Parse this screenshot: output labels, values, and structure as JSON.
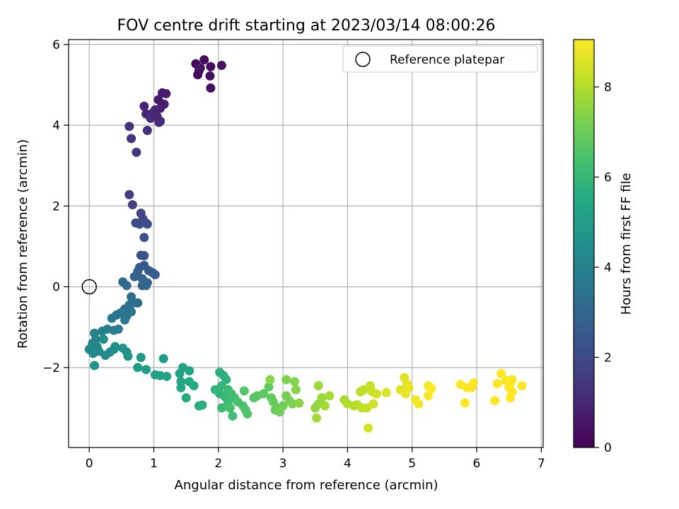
{
  "chart_data": {
    "type": "scatter",
    "title": "FOV centre drift starting at 2023/03/14 08:00:26",
    "xlabel": "Angular distance from reference (arcmin)",
    "ylabel": "Rotation from reference (arcmin)",
    "xlim": [
      -0.32,
      7.03
    ],
    "ylim": [
      -3.98,
      6.12
    ],
    "xticks": [
      0,
      1,
      2,
      3,
      4,
      5,
      6,
      7
    ],
    "yticks": [
      -2,
      0,
      2,
      4,
      6
    ],
    "x_tick_labels": [
      "0",
      "1",
      "2",
      "3",
      "4",
      "5",
      "6",
      "7"
    ],
    "y_tick_labels": [
      "−2",
      "0",
      "2",
      "4",
      "6"
    ],
    "grid": true,
    "legend": {
      "position": "top-right",
      "entries": [
        {
          "label": "Reference platepar",
          "marker": "open-circle"
        }
      ]
    },
    "reference_point": {
      "x": 0,
      "y": 0
    },
    "colorbar": {
      "label": "Hours from first FF file",
      "min": 0,
      "max": 9.05,
      "ticks": [
        0,
        2,
        4,
        6,
        8
      ],
      "tick_labels": [
        "0",
        "2",
        "4",
        "6",
        "8"
      ],
      "colormap": "viridis"
    },
    "series": [
      {
        "points": [
          [
            1.65,
            5.52,
            0.1
          ],
          [
            1.7,
            5.35,
            0.15
          ],
          [
            1.68,
            5.25,
            0.2
          ],
          [
            1.78,
            5.62,
            0.25
          ],
          [
            1.88,
            5.45,
            0.3
          ],
          [
            1.87,
            5.22,
            0.35
          ],
          [
            1.88,
            4.92,
            0.4
          ],
          [
            2.05,
            5.48,
            0.45
          ],
          [
            1.72,
            5.42,
            0.5
          ],
          [
            1.07,
            4.63,
            0.6
          ],
          [
            1.13,
            4.8,
            0.65
          ],
          [
            1.19,
            4.78,
            0.7
          ],
          [
            1.16,
            4.52,
            0.75
          ],
          [
            1.1,
            4.42,
            0.8
          ],
          [
            1.02,
            4.38,
            0.85
          ],
          [
            0.85,
            4.47,
            0.9
          ],
          [
            0.88,
            4.28,
            0.95
          ],
          [
            0.98,
            4.3,
            1.0
          ],
          [
            1.05,
            4.22,
            1.05
          ],
          [
            0.95,
            4.17,
            1.1
          ],
          [
            1.08,
            4.07,
            1.15
          ],
          [
            1.1,
            4.1,
            1.2
          ],
          [
            0.9,
            3.87,
            1.25
          ],
          [
            0.62,
            3.97,
            1.3
          ],
          [
            0.65,
            3.67,
            1.35
          ],
          [
            0.73,
            3.33,
            1.4
          ],
          [
            0.62,
            2.28,
            1.6
          ],
          [
            0.67,
            2.03,
            1.7
          ],
          [
            0.8,
            1.82,
            1.8
          ],
          [
            0.83,
            1.68,
            1.9
          ],
          [
            0.88,
            1.58,
            2.0
          ],
          [
            0.72,
            1.58,
            2.05
          ],
          [
            0.78,
            1.55,
            2.1
          ],
          [
            0.9,
            1.55,
            2.15
          ],
          [
            0.85,
            1.22,
            2.2
          ],
          [
            0.8,
            0.78,
            2.3
          ],
          [
            0.85,
            0.77,
            2.35
          ],
          [
            0.78,
            0.48,
            2.45
          ],
          [
            0.85,
            0.53,
            2.5
          ],
          [
            0.92,
            0.4,
            2.55
          ],
          [
            0.98,
            0.35,
            2.6
          ],
          [
            1.02,
            0.3,
            2.65
          ],
          [
            0.75,
            0.38,
            2.7
          ],
          [
            0.7,
            0.25,
            2.8
          ],
          [
            0.82,
            0.2,
            2.85
          ],
          [
            0.9,
            0.1,
            2.9
          ],
          [
            0.82,
            0.03,
            2.95
          ],
          [
            0.88,
            0.03,
            3.0
          ],
          [
            0.52,
            0.12,
            3.05
          ],
          [
            0.58,
            0.03,
            3.1
          ],
          [
            0.65,
            -0.25,
            3.15
          ],
          [
            0.75,
            -0.4,
            3.2
          ],
          [
            0.68,
            -0.4,
            3.25
          ],
          [
            0.62,
            -0.45,
            3.3
          ],
          [
            0.55,
            -0.55,
            3.35
          ],
          [
            0.65,
            -0.62,
            3.4
          ],
          [
            0.58,
            -0.72,
            3.45
          ],
          [
            0.48,
            -0.65,
            3.5
          ],
          [
            0.42,
            -0.7,
            3.55
          ],
          [
            0.35,
            -0.78,
            3.6
          ],
          [
            0.55,
            -0.82,
            3.65
          ],
          [
            0.45,
            -1.05,
            3.75
          ],
          [
            0.38,
            -1.08,
            3.8
          ],
          [
            0.28,
            -1.05,
            3.85
          ],
          [
            0.2,
            -1.1,
            3.9
          ],
          [
            0.08,
            -1.15,
            3.95
          ],
          [
            0.1,
            -1.3,
            4.0
          ],
          [
            0.05,
            -1.4,
            4.05
          ],
          [
            0.12,
            -1.48,
            4.1
          ],
          [
            0.0,
            -1.55,
            4.15
          ],
          [
            0.06,
            -1.65,
            4.2
          ],
          [
            0.15,
            -1.6,
            4.25
          ],
          [
            0.25,
            -1.7,
            4.3
          ],
          [
            0.32,
            -1.62,
            4.35
          ],
          [
            0.38,
            -1.55,
            4.4
          ],
          [
            0.22,
            -1.3,
            4.45
          ],
          [
            0.4,
            -1.48,
            4.5
          ],
          [
            0.52,
            -1.52,
            4.55
          ],
          [
            0.58,
            -1.62,
            4.6
          ],
          [
            0.6,
            -1.72,
            4.65
          ],
          [
            0.08,
            -1.95,
            4.7
          ],
          [
            0.8,
            -1.75,
            4.85
          ],
          [
            1.15,
            -1.78,
            4.9
          ],
          [
            0.75,
            -2.0,
            4.95
          ],
          [
            0.88,
            -2.05,
            5.0
          ],
          [
            1.02,
            -2.18,
            5.05
          ],
          [
            1.1,
            -2.2,
            5.1
          ],
          [
            1.2,
            -2.22,
            5.15
          ],
          [
            1.4,
            -2.15,
            5.2
          ],
          [
            1.45,
            -2.0,
            5.25
          ],
          [
            1.55,
            -2.08,
            5.3
          ],
          [
            1.42,
            -2.35,
            5.35
          ],
          [
            1.42,
            -2.5,
            5.4
          ],
          [
            1.55,
            -2.35,
            5.45
          ],
          [
            1.62,
            -2.45,
            5.5
          ],
          [
            1.5,
            -2.75,
            5.55
          ],
          [
            1.7,
            -2.95,
            5.6
          ],
          [
            1.75,
            -2.93,
            5.65
          ],
          [
            2.02,
            -2.12,
            5.7
          ],
          [
            2.08,
            -2.2,
            5.75
          ],
          [
            2.12,
            -2.3,
            5.8
          ],
          [
            1.95,
            -2.55,
            5.85
          ],
          [
            2.05,
            -2.45,
            5.9
          ],
          [
            2.02,
            -2.65,
            5.95
          ],
          [
            2.1,
            -2.72,
            6.0
          ],
          [
            2.15,
            -2.55,
            6.05
          ],
          [
            2.05,
            -3.0,
            6.1
          ],
          [
            2.15,
            -2.85,
            6.15
          ],
          [
            2.2,
            -2.65,
            6.2
          ],
          [
            2.25,
            -2.75,
            6.25
          ],
          [
            2.22,
            -3.2,
            6.3
          ],
          [
            2.18,
            -3.0,
            6.35
          ],
          [
            2.3,
            -2.85,
            6.4
          ],
          [
            2.38,
            -2.95,
            6.45
          ],
          [
            2.42,
            -3.05,
            6.5
          ],
          [
            2.45,
            -3.15,
            6.55
          ],
          [
            2.4,
            -2.58,
            6.6
          ],
          [
            2.55,
            -2.75,
            6.65
          ],
          [
            2.6,
            -2.7,
            6.7
          ],
          [
            2.7,
            -2.65,
            6.75
          ],
          [
            2.78,
            -2.48,
            6.8
          ],
          [
            2.82,
            -2.75,
            6.85
          ],
          [
            2.85,
            -2.85,
            6.9
          ],
          [
            2.88,
            -3.05,
            6.95
          ],
          [
            2.92,
            -3.0,
            7.0
          ],
          [
            2.95,
            -3.1,
            7.05
          ],
          [
            3.0,
            -2.95,
            7.1
          ],
          [
            3.05,
            -2.7,
            7.15
          ],
          [
            3.1,
            -2.82,
            7.2
          ],
          [
            3.15,
            -2.9,
            7.25
          ],
          [
            3.05,
            -2.3,
            7.3
          ],
          [
            3.18,
            -2.35,
            7.35
          ],
          [
            3.2,
            -2.55,
            7.4
          ],
          [
            2.8,
            -2.3,
            7.45
          ],
          [
            3.25,
            -2.88,
            7.5
          ],
          [
            3.5,
            -3.0,
            7.55
          ],
          [
            3.55,
            -2.9,
            7.6
          ],
          [
            3.6,
            -2.75,
            7.65
          ],
          [
            3.55,
            -2.45,
            7.7
          ],
          [
            3.52,
            -3.25,
            7.75
          ],
          [
            3.65,
            -2.95,
            7.8
          ],
          [
            3.72,
            -2.7,
            7.85
          ],
          [
            3.95,
            -2.8,
            7.9
          ],
          [
            4.0,
            -2.9,
            7.95
          ],
          [
            4.1,
            -2.95,
            8.0
          ],
          [
            4.15,
            -2.92,
            8.05
          ],
          [
            4.2,
            -2.6,
            8.1
          ],
          [
            4.25,
            -2.55,
            8.15
          ],
          [
            4.22,
            -3.0,
            8.2
          ],
          [
            4.3,
            -3.0,
            8.25
          ],
          [
            4.35,
            -2.45,
            8.3
          ],
          [
            4.38,
            -2.6,
            8.35
          ],
          [
            4.4,
            -2.9,
            8.4
          ],
          [
            4.45,
            -2.65,
            8.45
          ],
          [
            4.32,
            -3.5,
            8.5
          ],
          [
            4.6,
            -2.62,
            8.55
          ],
          [
            4.82,
            -2.55,
            8.6
          ],
          [
            4.88,
            -2.25,
            8.65
          ],
          [
            4.92,
            -2.4,
            8.7
          ],
          [
            4.95,
            -2.5,
            8.75
          ],
          [
            4.9,
            -2.65,
            8.8
          ],
          [
            5.05,
            -2.8,
            8.85
          ],
          [
            5.1,
            -2.9,
            8.9
          ],
          [
            5.25,
            -2.45,
            8.95
          ],
          [
            5.25,
            -2.7,
            9.0
          ],
          [
            5.3,
            -2.52,
            9.02
          ],
          [
            5.75,
            -2.42,
            9.05
          ],
          [
            5.82,
            -2.88,
            9.05
          ],
          [
            5.85,
            -2.5,
            9.05
          ],
          [
            5.92,
            -2.5,
            9.05
          ],
          [
            5.95,
            -2.38,
            9.05
          ],
          [
            6.28,
            -2.82,
            9.05
          ],
          [
            6.32,
            -2.4,
            9.05
          ],
          [
            6.38,
            -2.15,
            9.05
          ],
          [
            6.45,
            -2.32,
            9.05
          ],
          [
            6.5,
            -2.5,
            9.05
          ],
          [
            6.52,
            -2.4,
            9.05
          ],
          [
            6.55,
            -2.3,
            9.05
          ],
          [
            6.55,
            -2.6,
            9.05
          ],
          [
            6.52,
            -2.75,
            9.05
          ],
          [
            6.7,
            -2.45,
            9.05
          ]
        ]
      }
    ]
  }
}
